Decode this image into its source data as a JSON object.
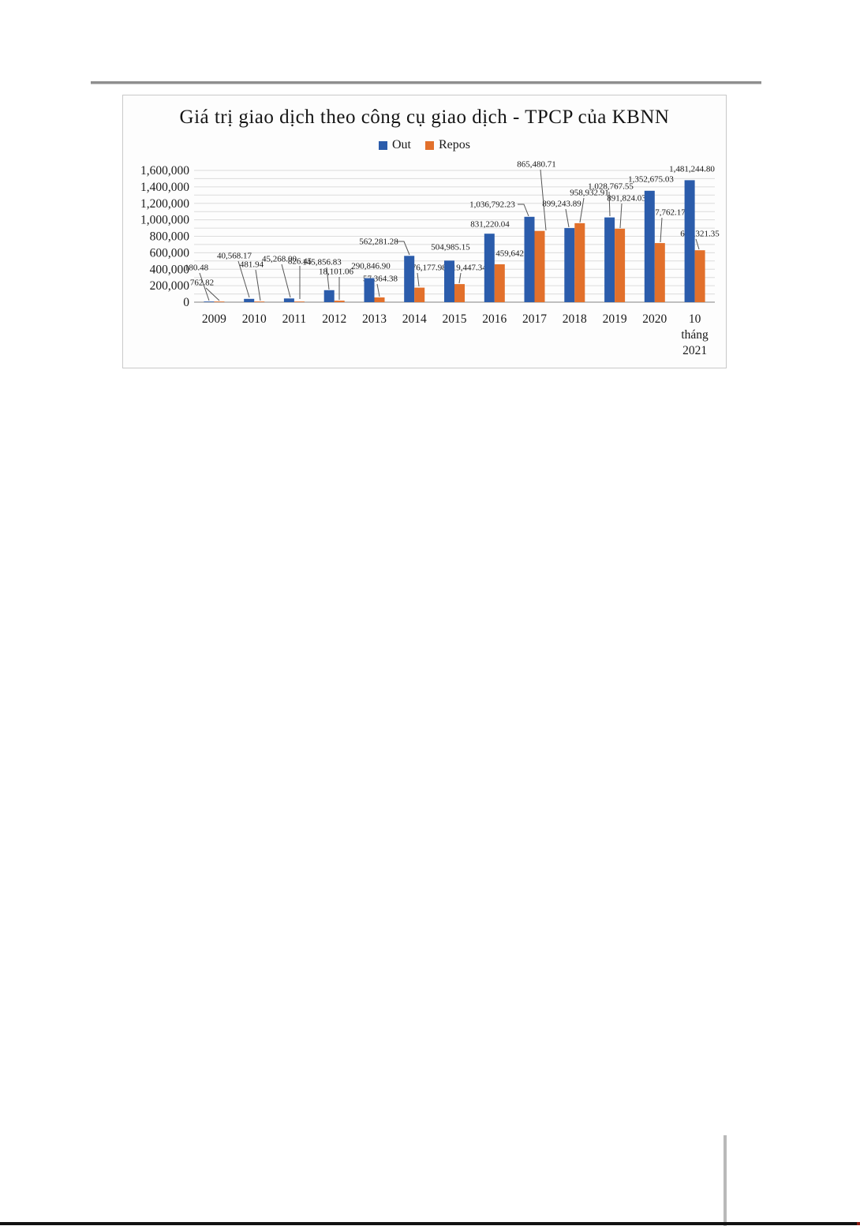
{
  "chart": {
    "title": "Giá trị giao dịch theo công cụ giao dịch - TPCP của KBNN"
  },
  "chart_data": {
    "type": "bar",
    "title": "Giá trị giao dịch theo công cụ giao dịch - TPCP của KBNN",
    "xlabel": "",
    "ylabel": "",
    "ylim": [
      0,
      1600000
    ],
    "ytick_interval": 200000,
    "gridline_interval": 100000,
    "grid": true,
    "legend_position": "top",
    "yticks": [
      "0",
      "200,000",
      "400,000",
      "600,000",
      "800,000",
      "1,000,000",
      "1,200,000",
      "1,400,000",
      "1,600,000"
    ],
    "categories": [
      "2009",
      "2010",
      "2011",
      "2012",
      "2013",
      "2014",
      "2015",
      "2016",
      "2017",
      "2018",
      "2019",
      "2020",
      "10 tháng 2021"
    ],
    "series": [
      {
        "name": "Out",
        "color": "#2b5cab",
        "values": [
          180.48,
          40568.17,
          45268.0,
          145856.83,
          290846.9,
          562281.28,
          504985.15,
          831220.04,
          1036792.23,
          899243.89,
          1028767.55,
          1352675.03,
          1481244.8
        ],
        "labels": [
          "180.48",
          "40,568.17",
          "45,268.00",
          "145,856.83",
          "290,846.90",
          "562,281.28",
          "504,985.15",
          "831,220.04",
          "1,036,792.23",
          "899,243.89",
          "1,028,767.55",
          "1,352,675.03",
          "1,481,244.80"
        ]
      },
      {
        "name": "Repos",
        "color": "#e2702b",
        "values": [
          762.82,
          481.94,
          826.45,
          18101.06,
          57364.38,
          176177.98,
          219447.34,
          459642.25,
          865480.71,
          958932.91,
          891824.03,
          717762.17,
          630321.35
        ],
        "labels": [
          "762.82",
          "481.94",
          "826.45",
          "18,101.06",
          "57,364.38",
          "176,177.98",
          "219,447.34",
          "459,642.25",
          "865,480.71",
          "958,932.91",
          "891,824.03",
          "717,762.17",
          "630,321.35"
        ]
      }
    ]
  }
}
